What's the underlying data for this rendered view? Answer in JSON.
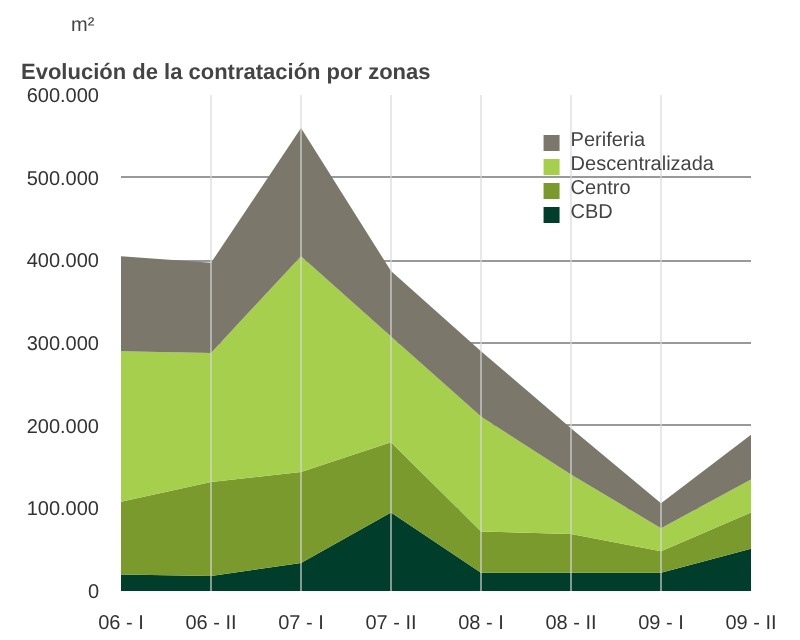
{
  "chart_data": {
    "type": "area",
    "stacked": true,
    "title": "Evolución de la contratación por zonas",
    "ylabel": "m²",
    "categories": [
      "06 - I",
      "06 - II",
      "07 - I",
      "07 - II",
      "08 - I",
      "08 - II",
      "09 - I",
      "09 - II"
    ],
    "series": [
      {
        "name": "CBD",
        "color": "#003d2a",
        "values": [
          20000,
          18000,
          34000,
          95000,
          22000,
          22000,
          22000,
          51000
        ]
      },
      {
        "name": "Centro",
        "color": "#7a9a2e",
        "values": [
          88000,
          114000,
          110000,
          85000,
          50000,
          47000,
          26000,
          44000
        ]
      },
      {
        "name": "Descentralizada",
        "color": "#a5cf4c",
        "values": [
          182000,
          156000,
          261000,
          128000,
          139000,
          72000,
          28000,
          40000
        ]
      },
      {
        "name": "Periferia",
        "color": "#7b776b",
        "values": [
          115000,
          109000,
          155000,
          79000,
          79000,
          56000,
          30000,
          54000
        ]
      }
    ],
    "ylim": [
      0,
      600000
    ],
    "yticks": [
      {
        "value": 0,
        "label": "0"
      },
      {
        "value": 100000,
        "label": "100.000"
      },
      {
        "value": 200000,
        "label": "200.000"
      },
      {
        "value": 300000,
        "label": "300.000"
      },
      {
        "value": 400000,
        "label": "400.000"
      },
      {
        "value": 500000,
        "label": "500.000"
      },
      {
        "value": 600000,
        "label": "600.000"
      }
    ],
    "grid": true,
    "legend": "top right"
  }
}
